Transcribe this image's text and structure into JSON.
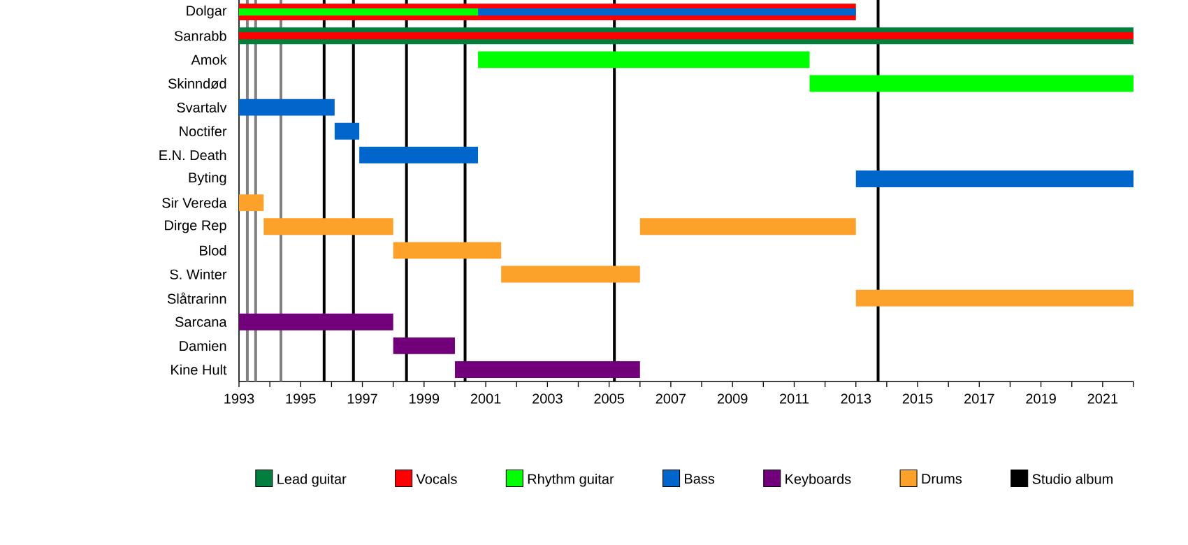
{
  "chart_data": {
    "type": "bar",
    "orientation": "horizontal",
    "legend": "bottom",
    "categories": [
      "Dolgar",
      "Sanrabb",
      "Amok",
      "Skinndød",
      "Svartalv",
      "Noctifer",
      "E.N. Death",
      "Byting",
      "Sir Vereda",
      "Dirge Rep",
      "Blod",
      "S. Winter",
      "Slåtrarinn",
      "Sarcana",
      "Damien",
      "Kine Hult"
    ],
    "series": [
      {
        "name": "Lead guitar",
        "color": "#007f3f",
        "base": [
          null,
          1993,
          null,
          null,
          null,
          null,
          null,
          null,
          null,
          null,
          null,
          null,
          null,
          null,
          null,
          null
        ],
        "values": [
          null,
          29,
          null,
          null,
          null,
          null,
          null,
          null,
          null,
          null,
          null,
          null,
          null,
          null,
          null,
          null
        ]
      },
      {
        "name": "Vocals",
        "color": "#ff0000",
        "base": [
          1993,
          1993,
          null,
          null,
          null,
          null,
          null,
          null,
          null,
          null,
          null,
          null,
          null,
          null,
          null,
          null
        ],
        "values": [
          20,
          29,
          null,
          null,
          null,
          null,
          null,
          null,
          null,
          null,
          null,
          null,
          null,
          null,
          null,
          null
        ]
      },
      {
        "name": "Rhythm guitar",
        "color": "#00ff00",
        "base": [
          1993,
          null,
          2000.75,
          2011.5,
          null,
          null,
          null,
          null,
          null,
          null,
          null,
          null,
          null,
          null,
          null,
          null
        ],
        "values": [
          7.75,
          null,
          10.75,
          10.5,
          null,
          null,
          null,
          null,
          null,
          null,
          null,
          null,
          null,
          null,
          null,
          null
        ]
      },
      {
        "name": "Bass",
        "color": "#0066cc",
        "base": [
          2000.75,
          null,
          null,
          null,
          1993,
          1996.1,
          1996.9,
          2013,
          null,
          null,
          null,
          null,
          null,
          null,
          null,
          null
        ],
        "values": [
          12.25,
          null,
          null,
          null,
          3.1,
          0.8,
          3.85,
          9,
          null,
          null,
          null,
          null,
          null,
          null,
          null,
          null
        ]
      },
      {
        "name": "Keyboards",
        "color": "#73007b",
        "base": [
          null,
          null,
          null,
          null,
          null,
          null,
          null,
          null,
          null,
          null,
          null,
          null,
          null,
          1993,
          1998,
          2000
        ],
        "values": [
          null,
          null,
          null,
          null,
          null,
          null,
          null,
          null,
          null,
          null,
          null,
          null,
          null,
          5,
          2,
          6
        ]
      },
      {
        "name": "Drums",
        "color": "#fca12a",
        "base": [
          null,
          null,
          null,
          null,
          null,
          null,
          null,
          null,
          1993,
          1993.8,
          1998,
          2001.5,
          2013,
          null,
          null,
          null
        ],
        "values": [
          null,
          null,
          null,
          null,
          null,
          null,
          null,
          null,
          0.8,
          4.2,
          3.5,
          4.5,
          9,
          null,
          null,
          null
        ]
      },
      {
        "color": "#fca12a",
        "base": [
          null,
          null,
          null,
          null,
          null,
          null,
          null,
          null,
          null,
          2006,
          null,
          null,
          null,
          null,
          null,
          null
        ],
        "values": [
          null,
          null,
          null,
          null,
          null,
          null,
          null,
          null,
          null,
          7,
          null,
          null,
          null,
          null,
          null,
          null
        ]
      }
    ],
    "xlim": [
      1993,
      2022
    ],
    "xticks": [
      1993,
      {
        "value": 1994,
        "label": null
      },
      1995,
      {
        "value": 1996,
        "label": null
      },
      1997,
      {
        "value": 1998,
        "label": null
      },
      1999,
      {
        "value": 2000,
        "label": null
      },
      2001,
      {
        "value": 2002,
        "label": null
      },
      2003,
      {
        "value": 2004,
        "label": null
      },
      2005,
      {
        "value": 2006,
        "label": null
      },
      2007,
      {
        "value": 2008,
        "label": null
      },
      2009,
      {
        "value": 2010,
        "label": null
      },
      2011,
      {
        "value": 2012,
        "label": null
      },
      2013,
      {
        "value": 2014,
        "label": null
      },
      2015,
      {
        "value": 2016,
        "label": null
      },
      2017,
      {
        "value": 2018,
        "label": null
      },
      2019,
      {
        "value": 2020,
        "label": null
      },
      2021,
      {
        "value": 2022,
        "label": null
      }
    ],
    "ref_lines": [
      {
        "axis": "x",
        "value": 1993.27,
        "color": "#808080"
      },
      {
        "axis": "x",
        "value": 1993.54,
        "color": "#808080"
      },
      {
        "axis": "x",
        "value": 1994.36,
        "color": "#808080"
      },
      {
        "axis": "x",
        "value": 1995.76,
        "color": "#000000",
        "label": "Studio album"
      },
      {
        "axis": "x",
        "value": 1996.71,
        "color": "#000000"
      },
      {
        "axis": "x",
        "value": 1998.43,
        "color": "#000000"
      },
      {
        "axis": "x",
        "value": 2000.33,
        "color": "#000000"
      },
      {
        "axis": "x",
        "value": 2005.17,
        "color": "#000000"
      },
      {
        "axis": "x",
        "value": 2013.72,
        "color": "#000000"
      }
    ]
  }
}
